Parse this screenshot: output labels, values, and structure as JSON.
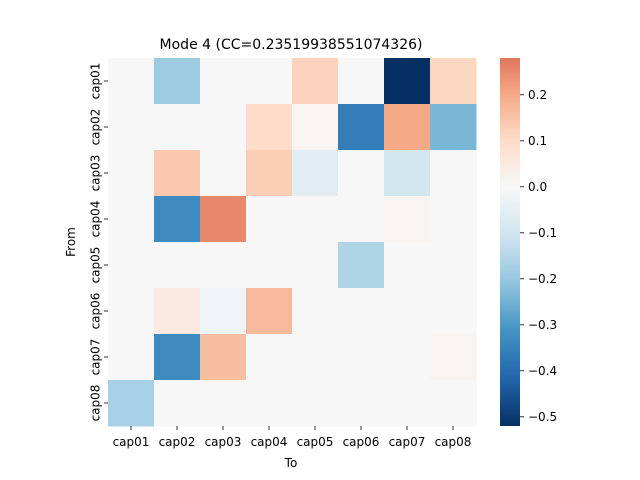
{
  "chart_data": {
    "type": "heatmap",
    "title": "Mode 4 (CC=0.23519938551074326)",
    "xlabel": "To",
    "ylabel": "From",
    "x_categories": [
      "cap01",
      "cap02",
      "cap03",
      "cap04",
      "cap05",
      "cap06",
      "cap07",
      "cap08"
    ],
    "y_categories": [
      "cap01",
      "cap02",
      "cap03",
      "cap04",
      "cap05",
      "cap06",
      "cap07",
      "cap08"
    ],
    "values": [
      [
        0,
        -0.19,
        0,
        0,
        0.12,
        0,
        -0.52,
        0.11
      ],
      [
        0,
        0,
        0,
        0.1,
        0.01,
        -0.36,
        0.2,
        -0.24
      ],
      [
        0,
        0.14,
        0,
        0.13,
        -0.06,
        0,
        -0.1,
        0
      ],
      [
        0,
        -0.33,
        0.25,
        0,
        0,
        0,
        0.01,
        0
      ],
      [
        0,
        0,
        0,
        0,
        0,
        -0.16,
        0,
        0
      ],
      [
        0,
        0.05,
        -0.02,
        0.17,
        0,
        0,
        0,
        0
      ],
      [
        0,
        -0.33,
        0.16,
        0,
        0,
        0,
        0,
        0.01
      ],
      [
        -0.17,
        0,
        0,
        0,
        0,
        0,
        0,
        0
      ]
    ],
    "colorbar": {
      "colormap": "RdBu_r",
      "range": [
        -0.52,
        0.28
      ],
      "ticks": [
        0.2,
        0.1,
        0.0,
        -0.1,
        -0.2,
        -0.3,
        -0.4,
        -0.5
      ],
      "tick_labels": [
        "0.2",
        "0.1",
        "0.0",
        "−0.1",
        "−0.2",
        "−0.3",
        "−0.4",
        "−0.5"
      ]
    }
  }
}
